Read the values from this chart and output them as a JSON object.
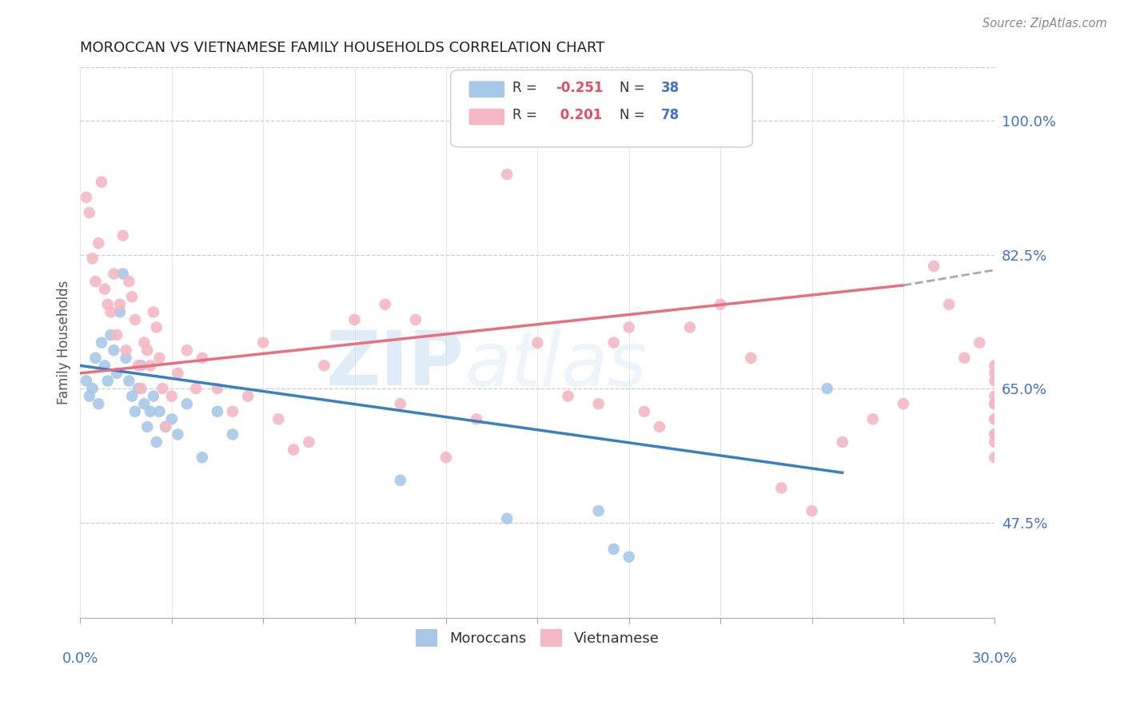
{
  "title": "MOROCCAN VS VIETNAMESE FAMILY HOUSEHOLDS CORRELATION CHART",
  "source": "Source: ZipAtlas.com",
  "ylabel": "Family Households",
  "xlim": [
    0.0,
    30.0
  ],
  "ylim": [
    35.0,
    107.0
  ],
  "yticks_right": [
    47.5,
    65.0,
    82.5,
    100.0
  ],
  "ytick_labels_right": [
    "47.5%",
    "65.0%",
    "82.5%",
    "100.0%"
  ],
  "watermark_zip": "ZIP",
  "watermark_atlas": "atlas",
  "blue_color": "#a8c8e8",
  "pink_color": "#f4b8c4",
  "blue_line_color": "#3a7fc1",
  "pink_line_color": "#e8707e",
  "axis_label_color": "#4472c4",
  "legend_R_color": "#e05060",
  "legend_N_color": "#4472c4",
  "blue_scatter_x": [
    0.2,
    0.3,
    0.4,
    0.5,
    0.6,
    0.7,
    0.8,
    0.9,
    1.0,
    1.1,
    1.2,
    1.3,
    1.4,
    1.5,
    1.6,
    1.7,
    1.8,
    1.9,
    2.0,
    2.1,
    2.2,
    2.3,
    2.4,
    2.5,
    2.6,
    2.8,
    3.0,
    3.2,
    3.5,
    4.0,
    4.5,
    5.0,
    10.5,
    14.0,
    24.5,
    17.0,
    17.5,
    18.0
  ],
  "blue_scatter_y": [
    66,
    64,
    65,
    69,
    63,
    71,
    68,
    66,
    72,
    70,
    67,
    75,
    80,
    69,
    66,
    64,
    62,
    65,
    68,
    63,
    60,
    62,
    64,
    58,
    62,
    60,
    61,
    59,
    63,
    56,
    62,
    59,
    53,
    48,
    65,
    49,
    44,
    43
  ],
  "pink_scatter_x": [
    0.2,
    0.3,
    0.4,
    0.5,
    0.6,
    0.7,
    0.8,
    0.9,
    1.0,
    1.1,
    1.2,
    1.3,
    1.4,
    1.5,
    1.6,
    1.7,
    1.8,
    1.9,
    2.0,
    2.1,
    2.2,
    2.3,
    2.4,
    2.5,
    2.6,
    2.7,
    2.8,
    3.0,
    3.2,
    3.5,
    3.8,
    4.0,
    4.5,
    5.0,
    5.5,
    6.0,
    6.5,
    7.0,
    7.5,
    8.0,
    9.0,
    10.0,
    10.5,
    11.0,
    12.0,
    13.0,
    14.0,
    15.0,
    16.0,
    17.0,
    17.5,
    18.0,
    18.5,
    19.0,
    20.0,
    21.0,
    22.0,
    23.0,
    24.0,
    25.0,
    26.0,
    27.0,
    28.0,
    28.5,
    29.0,
    29.5,
    30.0,
    30.0,
    30.0,
    30.0,
    30.0,
    30.0,
    30.0,
    30.0,
    30.0,
    30.0,
    30.0,
    30.0
  ],
  "pink_scatter_y": [
    90,
    88,
    82,
    79,
    84,
    92,
    78,
    76,
    75,
    80,
    72,
    76,
    85,
    70,
    79,
    77,
    74,
    68,
    65,
    71,
    70,
    68,
    75,
    73,
    69,
    65,
    60,
    64,
    67,
    70,
    65,
    69,
    65,
    62,
    64,
    71,
    61,
    57,
    58,
    68,
    74,
    76,
    63,
    74,
    56,
    61,
    93,
    71,
    64,
    63,
    71,
    73,
    62,
    60,
    73,
    76,
    69,
    52,
    49,
    58,
    61,
    63,
    81,
    76,
    69,
    71,
    64,
    67,
    66,
    68,
    61,
    59,
    63,
    61,
    58,
    56,
    63,
    59
  ]
}
